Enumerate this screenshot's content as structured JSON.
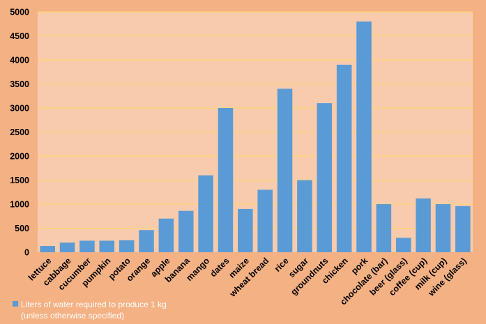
{
  "chart_data": {
    "type": "bar",
    "title": "",
    "xlabel": "",
    "ylabel": "",
    "ylim": [
      0,
      5000
    ],
    "yticks": [
      0,
      500,
      1000,
      1500,
      2000,
      2500,
      3000,
      3500,
      4000,
      4500,
      5000
    ],
    "grid": true,
    "legend_position": "bottom-left",
    "categories": [
      "lettuce",
      "cabbage",
      "cucumber",
      "pumpkin",
      "potato",
      "orange",
      "apple",
      "banana",
      "mango",
      "dates",
      "maize",
      "wheat bread",
      "rice",
      "sugar",
      "groundnuts",
      "chicken",
      "pork",
      "chocolate (bar)",
      "beer (glass)",
      "coffee (cup)",
      "milk (cup)",
      "wine (glass)"
    ],
    "series": [
      {
        "name": "Liters of water required to produce 1 kg (unless otherwise specified)",
        "name_lines": [
          "Liters of water required to produce 1 kg",
          "(unless otherwise specified)"
        ],
        "values": [
          130,
          200,
          240,
          240,
          250,
          460,
          700,
          860,
          1600,
          3000,
          900,
          1300,
          3400,
          1500,
          3100,
          3900,
          4800,
          1000,
          300,
          1120,
          1000,
          960
        ]
      }
    ],
    "colors": {
      "background": "#f4b183",
      "plot_area": "#f8cbad",
      "gridline": "#ffd966",
      "bar": "#5b9bd5"
    }
  }
}
